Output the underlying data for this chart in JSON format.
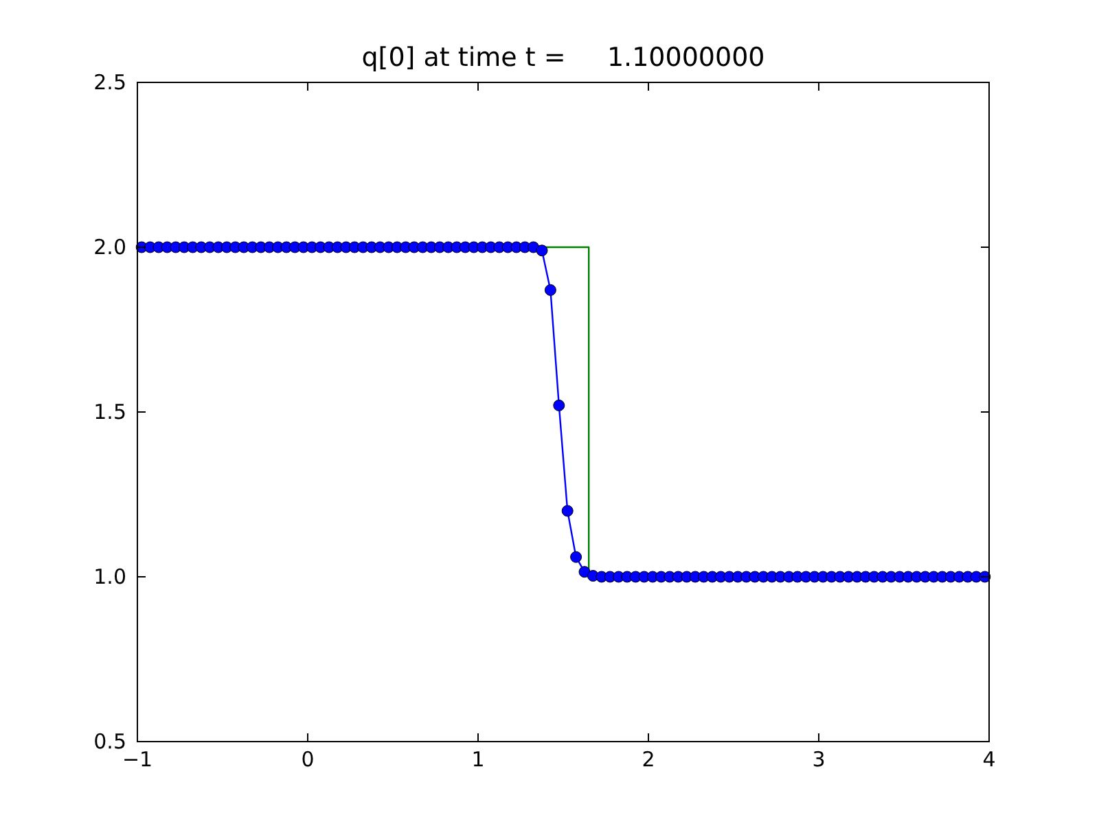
{
  "chart_data": {
    "type": "line",
    "title": "q[0] at time t =     1.10000000",
    "xlim": [
      -1,
      4
    ],
    "xticks": [
      -1,
      0,
      1,
      2,
      3,
      4
    ],
    "ylim": [
      0.5,
      2.5
    ],
    "yticks": [
      {
        "value": 0.5,
        "label": "0.5"
      },
      {
        "value": 1,
        "label": "1.0"
      },
      {
        "value": 1.5,
        "label": "1.5"
      },
      {
        "value": 2,
        "label": "2.0"
      },
      {
        "value": 2.5,
        "label": "2.5"
      }
    ],
    "grid": false,
    "series": [
      {
        "color": "#008000",
        "marker": "none",
        "x": [
          -1,
          1.65,
          1.65,
          4
        ],
        "values": [
          2,
          2,
          1,
          1
        ]
      },
      {
        "color": "#0000ff",
        "marker": "circle",
        "x": [
          -0.975,
          -0.925,
          -0.875,
          -0.825,
          -0.775,
          -0.725,
          -0.675,
          -0.625,
          -0.575,
          -0.525,
          -0.475,
          -0.425,
          -0.375,
          -0.325,
          -0.275,
          -0.225,
          -0.175,
          -0.125,
          -0.075,
          -0.025,
          0.025,
          0.075,
          0.125,
          0.175,
          0.225,
          0.275,
          0.325,
          0.375,
          0.425,
          0.475,
          0.525,
          0.575,
          0.625,
          0.675,
          0.725,
          0.775,
          0.825,
          0.875,
          0.925,
          0.975,
          1.025,
          1.075,
          1.125,
          1.175,
          1.225,
          1.275,
          1.325,
          1.375,
          1.425,
          1.475,
          1.525,
          1.575,
          1.625,
          1.675,
          1.725,
          1.775,
          1.825,
          1.875,
          1.925,
          1.975,
          2.025,
          2.075,
          2.125,
          2.175,
          2.225,
          2.275,
          2.325,
          2.375,
          2.425,
          2.475,
          2.525,
          2.575,
          2.625,
          2.675,
          2.725,
          2.775,
          2.825,
          2.875,
          2.925,
          2.975,
          3.025,
          3.075,
          3.125,
          3.175,
          3.225,
          3.275,
          3.325,
          3.375,
          3.425,
          3.475,
          3.525,
          3.575,
          3.625,
          3.675,
          3.725,
          3.775,
          3.825,
          3.875,
          3.925,
          3.975
        ],
        "values": [
          2,
          2,
          2,
          2,
          2,
          2,
          2,
          2,
          2,
          2,
          2,
          2,
          2,
          2,
          2,
          2,
          2,
          2,
          2,
          2,
          2,
          2,
          2,
          2,
          2,
          2,
          2,
          2,
          2,
          2,
          2,
          2,
          2,
          2,
          2,
          2,
          2,
          2,
          2,
          2,
          2,
          2,
          2,
          2,
          2,
          2,
          2,
          1.99,
          1.87,
          1.52,
          1.2,
          1.06,
          1.015,
          1.003,
          1,
          1,
          1,
          1,
          1,
          1,
          1,
          1,
          1,
          1,
          1,
          1,
          1,
          1,
          1,
          1,
          1,
          1,
          1,
          1,
          1,
          1,
          1,
          1,
          1,
          1,
          1,
          1,
          1,
          1,
          1,
          1,
          1,
          1,
          1,
          1,
          1,
          1,
          1,
          1,
          1,
          1,
          1,
          1,
          1,
          1
        ]
      }
    ]
  }
}
